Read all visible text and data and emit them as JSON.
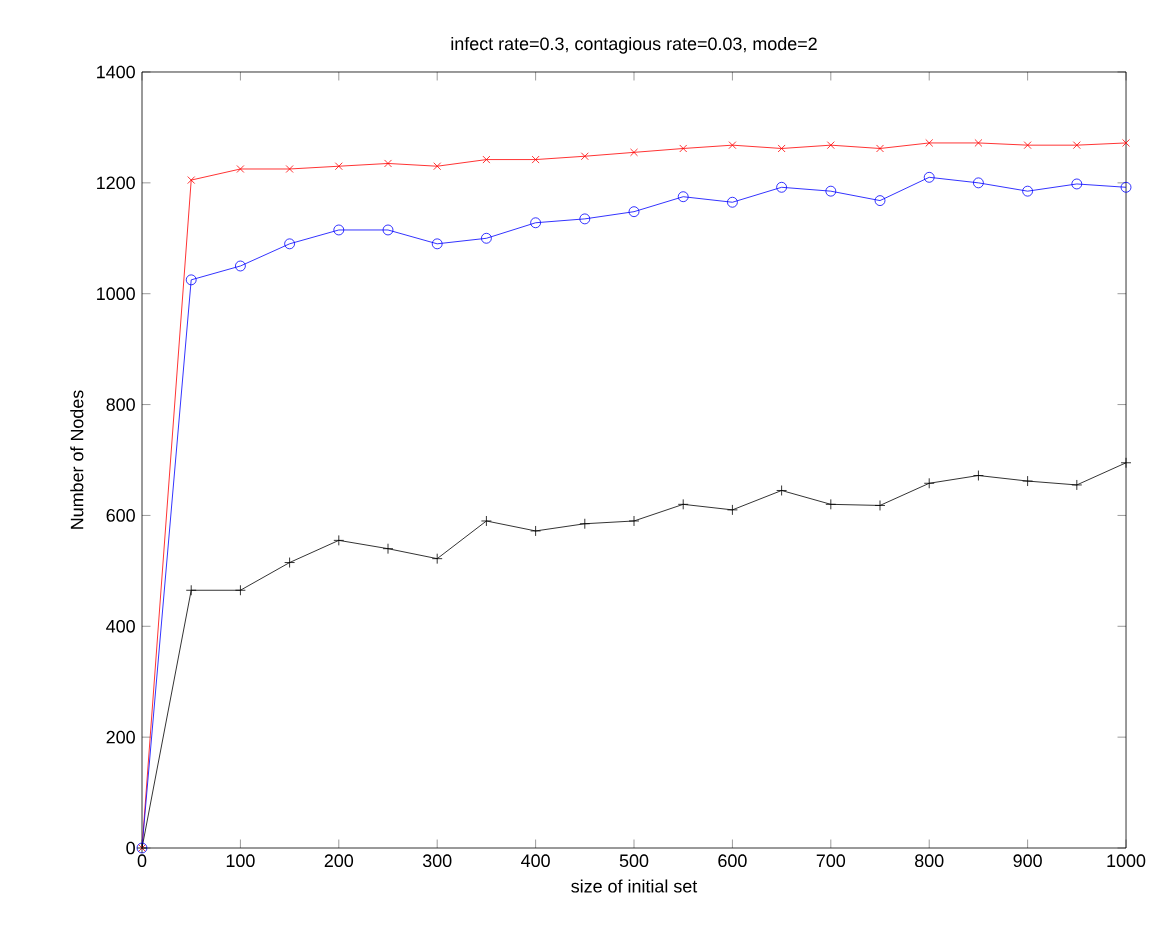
{
  "chart_data": {
    "type": "line",
    "title": "infect rate=0.3, contagious rate=0.03, mode=2",
    "xlabel": "size of initial set",
    "ylabel": "Number of Nodes",
    "x": [
      0,
      50,
      100,
      150,
      200,
      250,
      300,
      350,
      400,
      450,
      500,
      550,
      600,
      650,
      700,
      750,
      800,
      850,
      900,
      950,
      1000
    ],
    "series": [
      {
        "color": "#ff0000",
        "marker": "cross",
        "values": [
          0,
          1205,
          1225,
          1225,
          1230,
          1235,
          1230,
          1242,
          1242,
          1248,
          1255,
          1262,
          1268,
          1262,
          1268,
          1262,
          1272,
          1272,
          1268,
          1268,
          1272
        ]
      },
      {
        "color": "#0000ff",
        "marker": "circle",
        "values": [
          0,
          1025,
          1050,
          1090,
          1115,
          1115,
          1090,
          1100,
          1128,
          1135,
          1148,
          1175,
          1165,
          1192,
          1185,
          1168,
          1210,
          1200,
          1185,
          1198,
          1192
        ]
      },
      {
        "color": "#000000",
        "marker": "cross",
        "values": [
          0,
          465,
          465,
          515,
          555,
          540,
          522,
          590,
          572,
          585,
          590,
          620,
          610,
          645,
          620,
          618,
          658,
          672,
          662,
          655,
          695
        ]
      }
    ],
    "xlim": [
      0,
      1000
    ],
    "ylim": [
      0,
      1400
    ],
    "xticks": [
      0,
      100,
      200,
      300,
      400,
      500,
      600,
      700,
      800,
      900,
      1000
    ],
    "yticks": [
      0,
      200,
      400,
      600,
      800,
      1000,
      1200,
      1400
    ]
  }
}
